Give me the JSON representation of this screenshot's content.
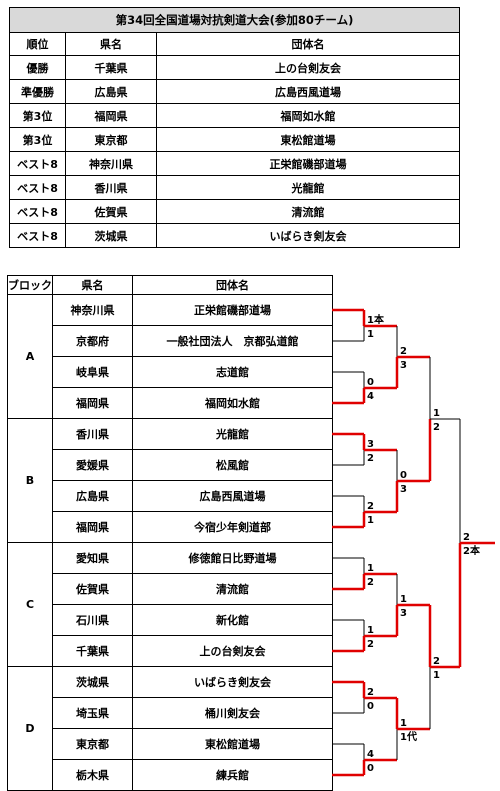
{
  "results": {
    "title": "第34回全国道場対抗剣道大会(参加80チーム)",
    "headers": [
      "順位",
      "県名",
      "団体名"
    ],
    "rows": [
      {
        "rank": "優勝",
        "pref": "千葉県",
        "team": "上の台剣友会"
      },
      {
        "rank": "準優勝",
        "pref": "広島県",
        "team": "広島西風道場"
      },
      {
        "rank": "第3位",
        "pref": "福岡県",
        "team": "福岡如水館"
      },
      {
        "rank": "第3位",
        "pref": "東京都",
        "team": "東松館道場"
      },
      {
        "rank": "ベスト8",
        "pref": "神奈川県",
        "team": "正栄館磯部道場"
      },
      {
        "rank": "ベスト8",
        "pref": "香川県",
        "team": "光龍館"
      },
      {
        "rank": "ベスト8",
        "pref": "佐賀県",
        "team": "清流館"
      },
      {
        "rank": "ベスト8",
        "pref": "茨城県",
        "team": "いばらき剣友会"
      }
    ]
  },
  "bracket": {
    "headers": [
      "ブロック",
      "県名",
      "団体名"
    ],
    "blocks": [
      {
        "name": "A",
        "teams": [
          {
            "pref": "神奈川県",
            "team": "正栄館磯部道場"
          },
          {
            "pref": "京都府",
            "team": "一般社団法人　京都弘道館"
          },
          {
            "pref": "岐阜県",
            "team": "志道館"
          },
          {
            "pref": "福岡県",
            "team": "福岡如水館"
          }
        ]
      },
      {
        "name": "B",
        "teams": [
          {
            "pref": "香川県",
            "team": "光龍館"
          },
          {
            "pref": "愛媛県",
            "team": "松風館"
          },
          {
            "pref": "広島県",
            "team": "広島西風道場"
          },
          {
            "pref": "福岡県",
            "team": "今宿少年剣道部"
          }
        ]
      },
      {
        "name": "C",
        "teams": [
          {
            "pref": "愛知県",
            "team": "修徳館日比野道場"
          },
          {
            "pref": "佐賀県",
            "team": "清流館"
          },
          {
            "pref": "石川県",
            "team": "新化館"
          },
          {
            "pref": "千葉県",
            "team": "上の台剣友会"
          }
        ]
      },
      {
        "name": "D",
        "teams": [
          {
            "pref": "茨城県",
            "team": "いばらき剣友会"
          },
          {
            "pref": "埼玉県",
            "team": "桶川剣友会"
          },
          {
            "pref": "東京都",
            "team": "東松館道場"
          },
          {
            "pref": "栃木県",
            "team": "練兵館"
          }
        ]
      }
    ],
    "scores": {
      "r1": [
        [
          "1本",
          "1"
        ],
        [
          "0",
          "4"
        ],
        [
          "3",
          "2"
        ],
        [
          "2",
          "1"
        ],
        [
          "1",
          "2"
        ],
        [
          "1",
          "2"
        ],
        [
          "2",
          "0"
        ],
        [
          "4",
          "0"
        ]
      ],
      "r2": [
        [
          "2",
          "3"
        ],
        [
          "0",
          "3"
        ],
        [
          "1",
          "3"
        ],
        [
          "1",
          "1代"
        ]
      ],
      "semi": [
        [
          "1",
          "2"
        ],
        [
          "2",
          "1"
        ]
      ],
      "final": [
        "2",
        "2本"
      ]
    },
    "colors": {
      "win": "#e00000",
      "line": "#000000"
    }
  }
}
